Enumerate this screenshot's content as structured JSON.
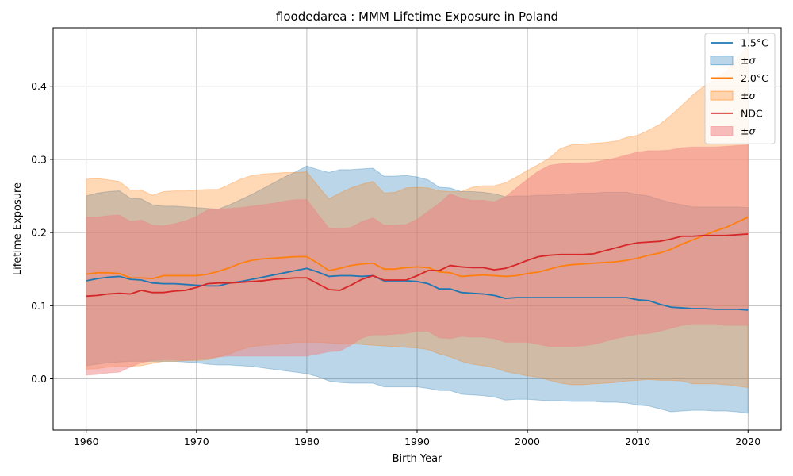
{
  "chart_data": {
    "type": "area",
    "title": "floodedarea : MMM Lifetime Exposure in Poland",
    "xlabel": "Birth Year",
    "ylabel": "Lifetime Exposure",
    "xlim": [
      1957,
      2023
    ],
    "ylim": [
      -0.07,
      0.48
    ],
    "xticks": [
      "1960",
      "1970",
      "1980",
      "1990",
      "2000",
      "2010",
      "2020"
    ],
    "yticks": [
      "0.0",
      "0.1",
      "0.2",
      "0.3",
      "0.4"
    ],
    "grid": true,
    "legend_position": "top-right",
    "x": [
      1960,
      1961,
      1962,
      1963,
      1964,
      1965,
      1966,
      1967,
      1968,
      1969,
      1970,
      1971,
      1972,
      1973,
      1974,
      1975,
      1976,
      1977,
      1978,
      1979,
      1980,
      1981,
      1982,
      1983,
      1984,
      1985,
      1986,
      1987,
      1988,
      1989,
      1990,
      1991,
      1992,
      1993,
      1994,
      1995,
      1996,
      1997,
      1998,
      1999,
      2000,
      2001,
      2002,
      2003,
      2004,
      2005,
      2006,
      2007,
      2008,
      2009,
      2010,
      2011,
      2012,
      2013,
      2014,
      2015,
      2016,
      2017,
      2018,
      2019,
      2020
    ],
    "series": [
      {
        "name": "1.5°C",
        "band_name": "±σ",
        "color": "#1f77b4",
        "band_color": "#1f77b4",
        "mean": [
          0.134,
          0.137,
          0.139,
          0.14,
          0.136,
          0.135,
          0.131,
          0.13,
          0.13,
          0.129,
          0.128,
          0.127,
          0.127,
          0.131,
          0.133,
          0.136,
          0.139,
          0.142,
          0.145,
          0.148,
          0.151,
          0.146,
          0.14,
          0.141,
          0.141,
          0.14,
          0.141,
          0.134,
          0.134,
          0.134,
          0.133,
          0.13,
          0.123,
          0.123,
          0.118,
          0.117,
          0.116,
          0.114,
          0.11,
          0.111,
          0.111,
          0.111,
          0.111,
          0.111,
          0.111,
          0.111,
          0.111,
          0.111,
          0.111,
          0.111,
          0.108,
          0.107,
          0.102,
          0.098,
          0.097,
          0.096,
          0.096,
          0.095,
          0.095,
          0.095,
          0.094
        ],
        "upper": [
          0.25,
          0.254,
          0.256,
          0.257,
          0.247,
          0.246,
          0.238,
          0.236,
          0.236,
          0.235,
          0.234,
          0.233,
          0.232,
          0.238,
          0.245,
          0.252,
          0.26,
          0.268,
          0.276,
          0.283,
          0.291,
          0.286,
          0.282,
          0.286,
          0.286,
          0.287,
          0.288,
          0.277,
          0.277,
          0.278,
          0.276,
          0.272,
          0.262,
          0.261,
          0.256,
          0.256,
          0.255,
          0.253,
          0.249,
          0.25,
          0.25,
          0.251,
          0.251,
          0.252,
          0.253,
          0.254,
          0.254,
          0.255,
          0.255,
          0.255,
          0.252,
          0.25,
          0.245,
          0.241,
          0.238,
          0.235,
          0.235,
          0.235,
          0.235,
          0.235,
          0.234
        ],
        "lower": [
          0.018,
          0.02,
          0.022,
          0.023,
          0.024,
          0.024,
          0.024,
          0.024,
          0.024,
          0.023,
          0.022,
          0.02,
          0.019,
          0.019,
          0.018,
          0.017,
          0.015,
          0.013,
          0.011,
          0.009,
          0.007,
          0.003,
          -0.003,
          -0.005,
          -0.006,
          -0.006,
          -0.006,
          -0.011,
          -0.011,
          -0.011,
          -0.011,
          -0.013,
          -0.016,
          -0.016,
          -0.021,
          -0.022,
          -0.023,
          -0.025,
          -0.029,
          -0.028,
          -0.028,
          -0.029,
          -0.03,
          -0.03,
          -0.031,
          -0.031,
          -0.031,
          -0.032,
          -0.032,
          -0.033,
          -0.036,
          -0.037,
          -0.041,
          -0.045,
          -0.044,
          -0.043,
          -0.043,
          -0.044,
          -0.044,
          -0.045,
          -0.047
        ]
      },
      {
        "name": "2.0°C",
        "band_name": "±σ",
        "color": "#ff7f0e",
        "band_color": "#ff7f0e",
        "mean": [
          0.143,
          0.145,
          0.145,
          0.144,
          0.138,
          0.138,
          0.137,
          0.141,
          0.141,
          0.141,
          0.141,
          0.143,
          0.147,
          0.152,
          0.158,
          0.162,
          0.164,
          0.165,
          0.166,
          0.167,
          0.167,
          0.158,
          0.148,
          0.151,
          0.155,
          0.157,
          0.158,
          0.15,
          0.15,
          0.152,
          0.153,
          0.152,
          0.146,
          0.145,
          0.14,
          0.141,
          0.142,
          0.141,
          0.14,
          0.141,
          0.144,
          0.146,
          0.15,
          0.154,
          0.156,
          0.157,
          0.158,
          0.159,
          0.16,
          0.162,
          0.165,
          0.169,
          0.172,
          0.177,
          0.184,
          0.19,
          0.196,
          0.202,
          0.207,
          0.214,
          0.221
        ],
        "upper": [
          0.273,
          0.274,
          0.272,
          0.27,
          0.258,
          0.258,
          0.251,
          0.256,
          0.257,
          0.257,
          0.258,
          0.259,
          0.259,
          0.266,
          0.273,
          0.278,
          0.28,
          0.281,
          0.282,
          0.282,
          0.283,
          0.264,
          0.246,
          0.254,
          0.261,
          0.266,
          0.27,
          0.254,
          0.255,
          0.261,
          0.262,
          0.261,
          0.257,
          0.256,
          0.256,
          0.262,
          0.264,
          0.264,
          0.268,
          0.276,
          0.285,
          0.293,
          0.302,
          0.315,
          0.32,
          0.321,
          0.322,
          0.323,
          0.325,
          0.33,
          0.333,
          0.34,
          0.348,
          0.36,
          0.374,
          0.388,
          0.4,
          0.41,
          0.42,
          0.438,
          0.455
        ],
        "lower": [
          0.013,
          0.014,
          0.016,
          0.017,
          0.017,
          0.018,
          0.021,
          0.024,
          0.024,
          0.025,
          0.025,
          0.026,
          0.03,
          0.034,
          0.04,
          0.044,
          0.046,
          0.047,
          0.048,
          0.05,
          0.05,
          0.05,
          0.049,
          0.048,
          0.048,
          0.047,
          0.046,
          0.045,
          0.044,
          0.043,
          0.042,
          0.04,
          0.034,
          0.03,
          0.024,
          0.02,
          0.018,
          0.015,
          0.01,
          0.007,
          0.004,
          0.002,
          -0.002,
          -0.006,
          -0.008,
          -0.008,
          -0.007,
          -0.006,
          -0.005,
          -0.003,
          -0.002,
          -0.001,
          -0.002,
          -0.002,
          -0.003,
          -0.007,
          -0.007,
          -0.007,
          -0.008,
          -0.01,
          -0.012
        ]
      },
      {
        "name": "NDC",
        "band_name": "±σ",
        "color": "#d62728",
        "band_color": "#f08080",
        "mean": [
          0.113,
          0.114,
          0.116,
          0.117,
          0.116,
          0.121,
          0.118,
          0.118,
          0.12,
          0.121,
          0.125,
          0.13,
          0.131,
          0.131,
          0.132,
          0.133,
          0.134,
          0.136,
          0.137,
          0.138,
          0.138,
          0.13,
          0.122,
          0.121,
          0.128,
          0.136,
          0.141,
          0.135,
          0.135,
          0.135,
          0.141,
          0.148,
          0.148,
          0.155,
          0.153,
          0.152,
          0.152,
          0.149,
          0.151,
          0.156,
          0.162,
          0.167,
          0.169,
          0.17,
          0.17,
          0.17,
          0.171,
          0.175,
          0.179,
          0.183,
          0.186,
          0.187,
          0.188,
          0.191,
          0.195,
          0.195,
          0.196,
          0.196,
          0.196,
          0.197,
          0.198
        ],
        "upper": [
          0.221,
          0.221,
          0.223,
          0.224,
          0.215,
          0.217,
          0.21,
          0.209,
          0.212,
          0.216,
          0.222,
          0.231,
          0.232,
          0.233,
          0.234,
          0.236,
          0.238,
          0.24,
          0.243,
          0.245,
          0.245,
          0.225,
          0.206,
          0.205,
          0.207,
          0.215,
          0.22,
          0.21,
          0.21,
          0.211,
          0.218,
          0.229,
          0.24,
          0.253,
          0.247,
          0.244,
          0.244,
          0.242,
          0.249,
          0.261,
          0.273,
          0.284,
          0.292,
          0.294,
          0.295,
          0.295,
          0.296,
          0.299,
          0.302,
          0.306,
          0.31,
          0.312,
          0.312,
          0.313,
          0.316,
          0.317,
          0.317,
          0.317,
          0.318,
          0.319,
          0.32
        ],
        "lower": [
          0.005,
          0.006,
          0.008,
          0.009,
          0.016,
          0.022,
          0.025,
          0.026,
          0.026,
          0.025,
          0.026,
          0.028,
          0.03,
          0.031,
          0.031,
          0.031,
          0.031,
          0.031,
          0.031,
          0.031,
          0.031,
          0.034,
          0.037,
          0.038,
          0.046,
          0.056,
          0.06,
          0.06,
          0.061,
          0.062,
          0.065,
          0.065,
          0.056,
          0.055,
          0.058,
          0.057,
          0.057,
          0.055,
          0.05,
          0.05,
          0.05,
          0.047,
          0.044,
          0.044,
          0.044,
          0.045,
          0.047,
          0.051,
          0.055,
          0.058,
          0.061,
          0.062,
          0.065,
          0.069,
          0.073,
          0.074,
          0.074,
          0.074,
          0.073,
          0.073,
          0.073
        ]
      }
    ]
  }
}
